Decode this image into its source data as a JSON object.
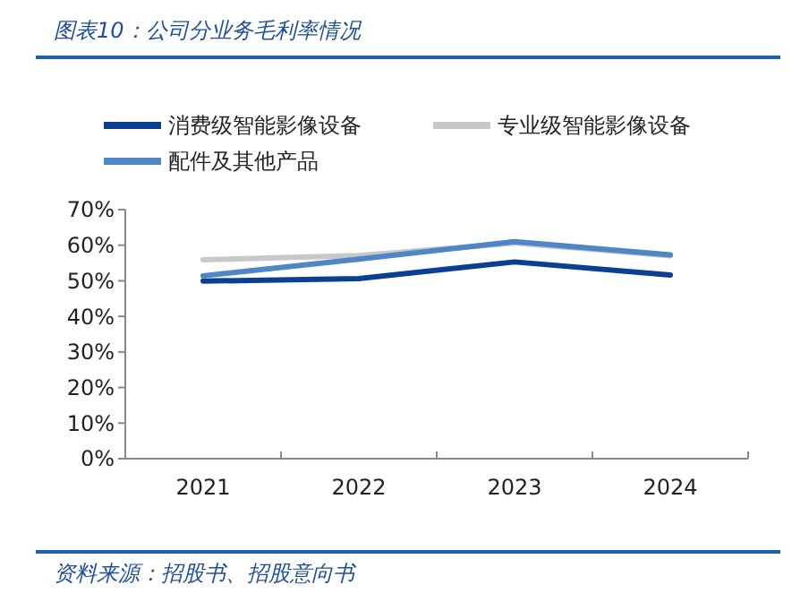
{
  "chart_data": {
    "type": "line",
    "title": "图表10：公司分业务毛利率情况",
    "categories": [
      "2021",
      "2022",
      "2023",
      "2024"
    ],
    "series": [
      {
        "name": "消费级智能影像设备",
        "color": "#0a3f91",
        "values": [
          49.9,
          50.6,
          55.3,
          51.6
        ]
      },
      {
        "name": "专业级智能影像设备",
        "color": "#c8c8c8",
        "values": [
          55.9,
          57.1,
          60.6,
          57.0
        ]
      },
      {
        "name": "配件及其他产品",
        "color": "#4f86c6",
        "values": [
          51.4,
          56.1,
          61.0,
          57.3
        ]
      }
    ],
    "ylim": [
      0,
      70
    ],
    "yticks": [
      {
        "value": 0,
        "label": "0%"
      },
      {
        "value": 10,
        "label": "10%"
      },
      {
        "value": 20,
        "label": "20%"
      },
      {
        "value": 30,
        "label": "30%"
      },
      {
        "value": 40,
        "label": "40%"
      },
      {
        "value": 50,
        "label": "50%"
      },
      {
        "value": 60,
        "label": "60%"
      },
      {
        "value": 70,
        "label": "70%"
      }
    ],
    "grid": false,
    "legend": "top",
    "marker": "none",
    "line_style": "solid",
    "annotations": [
      "资料来源：招股书、招股意向书"
    ]
  }
}
